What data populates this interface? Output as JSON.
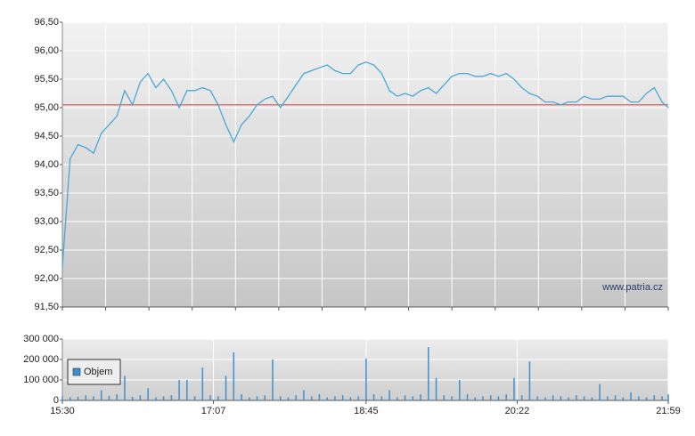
{
  "chart_data": [
    {
      "type": "line",
      "x": [
        930,
        935,
        940,
        945,
        950,
        955,
        960,
        965,
        970,
        975,
        980,
        985,
        990,
        995,
        1000,
        1005,
        1010,
        1015,
        1020,
        1025,
        1030,
        1035,
        1040,
        1045,
        1050,
        1055,
        1060,
        1065,
        1070,
        1075,
        1080,
        1085,
        1090,
        1095,
        1100,
        1105,
        1110,
        1115,
        1120,
        1125,
        1130,
        1135,
        1140,
        1145,
        1150,
        1155,
        1160,
        1165,
        1170,
        1175,
        1180,
        1185,
        1190,
        1195,
        1200,
        1205,
        1210,
        1215,
        1220,
        1225,
        1230,
        1235,
        1240,
        1245,
        1250,
        1255,
        1260,
        1265,
        1270,
        1275,
        1280,
        1285,
        1290,
        1295,
        1300,
        1305,
        1310,
        1315,
        1319
      ],
      "series": [
        {
          "color": "#4aa8d8",
          "values": [
            92.2,
            94.1,
            94.35,
            94.3,
            94.2,
            94.55,
            94.7,
            94.85,
            95.3,
            95.05,
            95.45,
            95.6,
            95.35,
            95.5,
            95.3,
            95.0,
            95.3,
            95.3,
            95.35,
            95.3,
            95.05,
            94.7,
            94.4,
            94.7,
            94.85,
            95.05,
            95.15,
            95.2,
            95.0,
            95.2,
            95.4,
            95.6,
            95.65,
            95.7,
            95.75,
            95.65,
            95.6,
            95.6,
            95.75,
            95.8,
            95.75,
            95.6,
            95.3,
            95.2,
            95.25,
            95.2,
            95.3,
            95.35,
            95.25,
            95.4,
            95.55,
            95.6,
            95.6,
            95.55,
            95.55,
            95.6,
            95.55,
            95.6,
            95.5,
            95.35,
            95.25,
            95.2,
            95.1,
            95.1,
            95.05,
            95.1,
            95.1,
            95.2,
            95.15,
            95.15,
            95.2,
            95.2,
            95.2,
            95.1,
            95.1,
            95.25,
            95.35,
            95.1,
            95.0
          ]
        }
      ],
      "xlim": [
        930,
        1319
      ],
      "ylim": [
        91.5,
        96.5
      ],
      "yticks": [
        {
          "value": 91.5,
          "label": "91,50"
        },
        {
          "value": 92,
          "label": "92,00"
        },
        {
          "value": 92.5,
          "label": "92,50"
        },
        {
          "value": 93,
          "label": "93,00"
        },
        {
          "value": 93.5,
          "label": "93,50"
        },
        {
          "value": 94,
          "label": "94,00"
        },
        {
          "value": 94.5,
          "label": "94,50"
        },
        {
          "value": 95,
          "label": "95,00"
        },
        {
          "value": 95.5,
          "label": "95,50"
        },
        {
          "value": 96,
          "label": "96,00"
        },
        {
          "value": 96.5,
          "label": "96,50"
        }
      ],
      "ref_line": {
        "value": 95.05,
        "color": "#d9534f"
      },
      "grid": true,
      "annotation": "www.patria.cz"
    },
    {
      "type": "bar",
      "x": [
        930,
        935,
        940,
        945,
        950,
        955,
        960,
        965,
        970,
        975,
        980,
        985,
        990,
        995,
        1000,
        1005,
        1010,
        1015,
        1020,
        1025,
        1030,
        1035,
        1040,
        1045,
        1050,
        1055,
        1060,
        1065,
        1070,
        1075,
        1080,
        1085,
        1090,
        1095,
        1100,
        1105,
        1110,
        1115,
        1120,
        1125,
        1130,
        1135,
        1140,
        1145,
        1150,
        1155,
        1160,
        1165,
        1170,
        1175,
        1180,
        1185,
        1190,
        1195,
        1200,
        1205,
        1210,
        1215,
        1220,
        1225,
        1230,
        1235,
        1240,
        1245,
        1250,
        1255,
        1260,
        1265,
        1270,
        1275,
        1280,
        1285,
        1290,
        1295,
        1300,
        1305,
        1310,
        1315,
        1319
      ],
      "series": [
        {
          "name": "Objem",
          "color": "#3f8fcf",
          "values": [
            20000,
            15000,
            18000,
            25000,
            20000,
            50000,
            22000,
            30000,
            120000,
            18000,
            25000,
            60000,
            15000,
            20000,
            25000,
            100000,
            100000,
            20000,
            160000,
            25000,
            20000,
            120000,
            235000,
            30000,
            15000,
            20000,
            25000,
            200000,
            20000,
            15000,
            25000,
            50000,
            20000,
            30000,
            15000,
            20000,
            25000,
            15000,
            20000,
            205000,
            30000,
            20000,
            50000,
            15000,
            25000,
            20000,
            30000,
            260000,
            110000,
            25000,
            20000,
            100000,
            30000,
            15000,
            20000,
            25000,
            20000,
            30000,
            110000,
            25000,
            190000,
            20000,
            15000,
            25000,
            20000,
            15000,
            25000,
            20000,
            15000,
            80000,
            20000,
            25000,
            15000,
            40000,
            20000,
            15000,
            25000,
            20000,
            30000
          ]
        }
      ],
      "xlim": [
        930,
        1319
      ],
      "ylim": [
        0,
        300000
      ],
      "yticks": [
        0,
        {
          "value": 100000,
          "label": "100 000"
        },
        {
          "value": 200000,
          "label": "200 000"
        },
        {
          "value": 300000,
          "label": "300 000"
        }
      ],
      "xticks": [
        {
          "value": 930,
          "label": "15:30"
        },
        {
          "value": 1027,
          "label": "17:07"
        },
        {
          "value": 1125,
          "label": "18:45"
        },
        {
          "value": 1222,
          "label": "20:22"
        },
        {
          "value": 1319,
          "label": "21:59"
        }
      ],
      "legend": "left",
      "grid": true
    }
  ]
}
